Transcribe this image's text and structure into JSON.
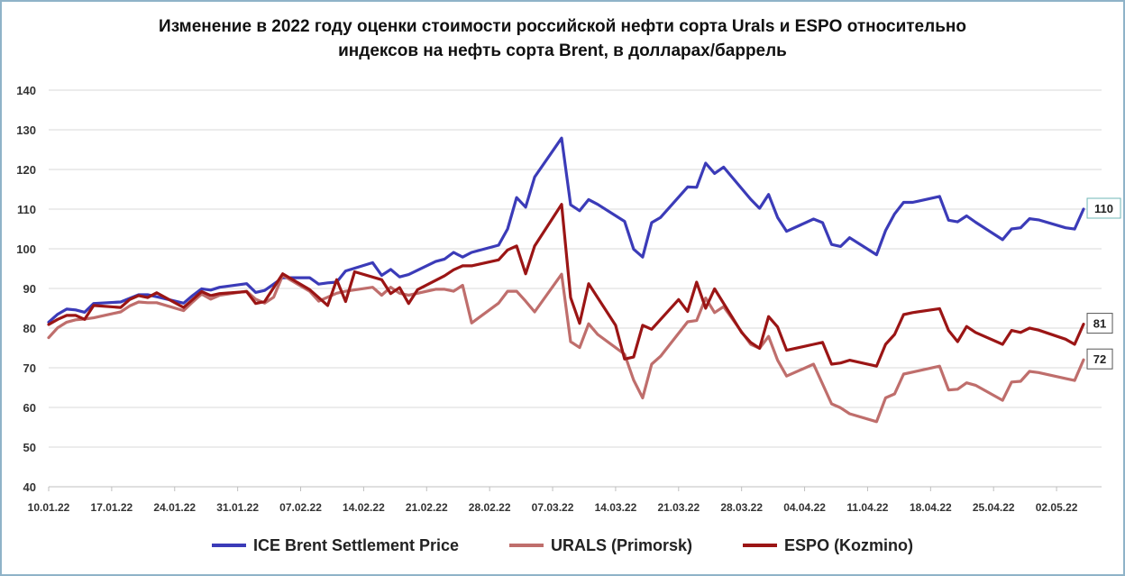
{
  "chart_data": {
    "type": "line",
    "title_line1": "Изменение в 2022 году оценки стоимости российской нефти сорта Urals и ESPO  относительно",
    "title_line2": "индексов на нефть сорта Brent, в долларах/баррель",
    "xlabel": "",
    "ylabel": "",
    "ylim": [
      40,
      140
    ],
    "yticks": [
      "40",
      "50",
      "60",
      "70",
      "80",
      "90",
      "100",
      "110",
      "120",
      "130",
      "140"
    ],
    "xlim_days": [
      10,
      127
    ],
    "xticks": [
      {
        "label": "10.01.22",
        "day": 10
      },
      {
        "label": "17.01.22",
        "day": 17
      },
      {
        "label": "24.01.22",
        "day": 24
      },
      {
        "label": "31.01.22",
        "day": 31
      },
      {
        "label": "07.02.22",
        "day": 38
      },
      {
        "label": "14.02.22",
        "day": 45
      },
      {
        "label": "21.02.22",
        "day": 52
      },
      {
        "label": "28.02.22",
        "day": 59
      },
      {
        "label": "07.03.22",
        "day": 66
      },
      {
        "label": "14.03.22",
        "day": 73
      },
      {
        "label": "21.03.22",
        "day": 80
      },
      {
        "label": "28.03.22",
        "day": 87
      },
      {
        "label": "04.04.22",
        "day": 94
      },
      {
        "label": "11.04.22",
        "day": 101
      },
      {
        "label": "18.04.22",
        "day": 108
      },
      {
        "label": "25.04.22",
        "day": 115
      },
      {
        "label": "02.05.22",
        "day": 122
      }
    ],
    "grid": true,
    "legend_position": "bottom",
    "series": [
      {
        "name": "ICE Brent Settlement Price",
        "color": "#3b3bb8",
        "end_label": "110",
        "points": [
          [
            10,
            81.5
          ],
          [
            11,
            83.5
          ],
          [
            12,
            84.8
          ],
          [
            13,
            84.6
          ],
          [
            14,
            84.0
          ],
          [
            15,
            86.2
          ],
          [
            18,
            86.6
          ],
          [
            19,
            87.5
          ],
          [
            20,
            88.4
          ],
          [
            21,
            88.4
          ],
          [
            22,
            87.9
          ],
          [
            25,
            86.3
          ],
          [
            26,
            88.2
          ],
          [
            27,
            89.9
          ],
          [
            28,
            89.6
          ],
          [
            29,
            90.3
          ],
          [
            32,
            91.2
          ],
          [
            33,
            89.0
          ],
          [
            34,
            89.5
          ],
          [
            35,
            91.1
          ],
          [
            36,
            92.7
          ],
          [
            39,
            92.7
          ],
          [
            40,
            91.1
          ],
          [
            41,
            91.4
          ],
          [
            42,
            91.6
          ],
          [
            43,
            94.4
          ],
          [
            46,
            96.5
          ],
          [
            47,
            93.3
          ],
          [
            48,
            94.8
          ],
          [
            49,
            92.9
          ],
          [
            50,
            93.5
          ],
          [
            53,
            96.8
          ],
          [
            54,
            97.4
          ],
          [
            55,
            99.1
          ],
          [
            56,
            97.9
          ],
          [
            57,
            99.1
          ],
          [
            60,
            100.9
          ],
          [
            61,
            105.0
          ],
          [
            62,
            112.9
          ],
          [
            63,
            110.5
          ],
          [
            64,
            118.1
          ],
          [
            67,
            127.9
          ],
          [
            68,
            111.1
          ],
          [
            69,
            109.6
          ],
          [
            70,
            112.4
          ],
          [
            71,
            111.2
          ],
          [
            74,
            106.9
          ],
          [
            75,
            99.9
          ],
          [
            76,
            97.9
          ],
          [
            77,
            106.6
          ],
          [
            78,
            107.9
          ],
          [
            81,
            115.6
          ],
          [
            82,
            115.5
          ],
          [
            83,
            121.6
          ],
          [
            84,
            119.0
          ],
          [
            85,
            120.6
          ],
          [
            88,
            112.5
          ],
          [
            89,
            110.2
          ],
          [
            90,
            113.7
          ],
          [
            91,
            107.9
          ],
          [
            92,
            104.4
          ],
          [
            95,
            107.5
          ],
          [
            96,
            106.6
          ],
          [
            97,
            101.1
          ],
          [
            98,
            100.6
          ],
          [
            99,
            102.8
          ],
          [
            102,
            98.5
          ],
          [
            103,
            104.6
          ],
          [
            104,
            108.8
          ],
          [
            105,
            111.7
          ],
          [
            106,
            111.7
          ],
          [
            109,
            113.2
          ],
          [
            110,
            107.2
          ],
          [
            111,
            106.8
          ],
          [
            112,
            108.3
          ],
          [
            113,
            106.7
          ],
          [
            116,
            102.3
          ],
          [
            117,
            104.99
          ],
          [
            118,
            105.3
          ],
          [
            119,
            107.6
          ],
          [
            120,
            107.3
          ],
          [
            123,
            105.3
          ],
          [
            124,
            104.97
          ],
          [
            125,
            110.0
          ]
        ]
      },
      {
        "name": "URALS (Primorsk)",
        "color": "#bf6e6c",
        "end_label": "72",
        "points": [
          [
            10,
            77.6
          ],
          [
            11,
            80.1
          ],
          [
            12,
            81.5
          ],
          [
            13,
            82.1
          ],
          [
            14,
            82.3
          ],
          [
            15,
            82.6
          ],
          [
            18,
            84.1
          ],
          [
            19,
            85.6
          ],
          [
            20,
            86.6
          ],
          [
            21,
            86.4
          ],
          [
            22,
            86.4
          ],
          [
            25,
            84.4
          ],
          [
            26,
            86.6
          ],
          [
            27,
            88.6
          ],
          [
            28,
            87.3
          ],
          [
            29,
            88.3
          ],
          [
            32,
            89.3
          ],
          [
            33,
            87.3
          ],
          [
            34,
            86.3
          ],
          [
            35,
            87.8
          ],
          [
            36,
            93.3
          ],
          [
            39,
            89.3
          ],
          [
            40,
            86.8
          ],
          [
            41,
            87.8
          ],
          [
            42,
            88.8
          ],
          [
            43,
            89.3
          ],
          [
            46,
            90.3
          ],
          [
            47,
            88.3
          ],
          [
            48,
            90.3
          ],
          [
            49,
            88.8
          ],
          [
            50,
            88.3
          ],
          [
            53,
            89.8
          ],
          [
            54,
            89.8
          ],
          [
            55,
            89.3
          ],
          [
            56,
            90.8
          ],
          [
            57,
            81.3
          ],
          [
            60,
            86.3
          ],
          [
            61,
            89.3
          ],
          [
            62,
            89.3
          ],
          [
            63,
            86.8
          ],
          [
            64,
            84.1
          ],
          [
            67,
            93.6
          ],
          [
            68,
            76.6
          ],
          [
            69,
            75.1
          ],
          [
            70,
            81.1
          ],
          [
            71,
            78.4
          ],
          [
            74,
            73.4
          ],
          [
            75,
            66.9
          ],
          [
            76,
            62.4
          ],
          [
            77,
            70.9
          ],
          [
            78,
            72.9
          ],
          [
            81,
            81.6
          ],
          [
            82,
            81.9
          ],
          [
            83,
            87.6
          ],
          [
            84,
            83.9
          ],
          [
            85,
            85.4
          ],
          [
            88,
            75.9
          ],
          [
            89,
            74.9
          ],
          [
            90,
            77.9
          ],
          [
            91,
            71.9
          ],
          [
            92,
            67.9
          ],
          [
            95,
            70.9
          ],
          [
            96,
            65.9
          ],
          [
            97,
            60.9
          ],
          [
            98,
            59.9
          ],
          [
            99,
            58.4
          ],
          [
            102,
            56.4
          ],
          [
            103,
            62.4
          ],
          [
            104,
            63.4
          ],
          [
            105,
            68.4
          ],
          [
            106,
            68.9
          ],
          [
            109,
            70.4
          ],
          [
            110,
            64.4
          ],
          [
            111,
            64.6
          ],
          [
            112,
            66.2
          ],
          [
            113,
            65.6
          ],
          [
            116,
            61.8
          ],
          [
            117,
            66.4
          ],
          [
            118,
            66.6
          ],
          [
            119,
            69.1
          ],
          [
            120,
            68.8
          ],
          [
            123,
            67.3
          ],
          [
            124,
            66.8
          ],
          [
            125,
            72.0
          ]
        ]
      },
      {
        "name": "ESPO (Kozmino)",
        "color": "#9b1515",
        "end_label": "81",
        "points": [
          [
            10,
            80.9
          ],
          [
            11,
            82.2
          ],
          [
            12,
            83.2
          ],
          [
            13,
            83.2
          ],
          [
            14,
            82.2
          ],
          [
            15,
            85.7
          ],
          [
            18,
            85.2
          ],
          [
            19,
            87.2
          ],
          [
            20,
            88.2
          ],
          [
            21,
            87.7
          ],
          [
            22,
            88.9
          ],
          [
            25,
            85.2
          ],
          [
            26,
            87.2
          ],
          [
            27,
            89.2
          ],
          [
            28,
            88.2
          ],
          [
            29,
            88.7
          ],
          [
            32,
            89.2
          ],
          [
            33,
            86.2
          ],
          [
            34,
            86.7
          ],
          [
            35,
            90.2
          ],
          [
            36,
            93.7
          ],
          [
            39,
            89.7
          ],
          [
            40,
            87.7
          ],
          [
            41,
            85.7
          ],
          [
            42,
            92.2
          ],
          [
            43,
            86.7
          ],
          [
            44,
            94.2
          ],
          [
            47,
            92.2
          ],
          [
            48,
            88.7
          ],
          [
            49,
            90.2
          ],
          [
            50,
            86.2
          ],
          [
            51,
            89.7
          ],
          [
            54,
            93.2
          ],
          [
            55,
            94.7
          ],
          [
            56,
            95.7
          ],
          [
            57,
            95.7
          ],
          [
            60,
            97.2
          ],
          [
            61,
            99.7
          ],
          [
            62,
            100.7
          ],
          [
            63,
            93.7
          ],
          [
            64,
            100.7
          ],
          [
            67,
            111.2
          ],
          [
            68,
            87.7
          ],
          [
            69,
            81.2
          ],
          [
            70,
            91.2
          ],
          [
            73,
            80.7
          ],
          [
            74,
            72.2
          ],
          [
            75,
            72.7
          ],
          [
            76,
            80.7
          ],
          [
            77,
            79.7
          ],
          [
            80,
            87.2
          ],
          [
            81,
            84.2
          ],
          [
            82,
            91.6
          ],
          [
            83,
            85.0
          ],
          [
            84,
            89.9
          ],
          [
            87,
            78.9
          ],
          [
            88,
            76.4
          ],
          [
            89,
            74.9
          ],
          [
            90,
            82.9
          ],
          [
            91,
            80.3
          ],
          [
            92,
            74.4
          ],
          [
            95,
            75.9
          ],
          [
            96,
            76.4
          ],
          [
            97,
            70.9
          ],
          [
            98,
            71.2
          ],
          [
            99,
            71.9
          ],
          [
            102,
            70.4
          ],
          [
            103,
            75.9
          ],
          [
            104,
            78.4
          ],
          [
            105,
            83.4
          ],
          [
            106,
            83.9
          ],
          [
            109,
            84.9
          ],
          [
            110,
            79.4
          ],
          [
            111,
            76.6
          ],
          [
            112,
            80.4
          ],
          [
            113,
            78.9
          ],
          [
            116,
            75.9
          ],
          [
            117,
            79.4
          ],
          [
            118,
            78.9
          ],
          [
            119,
            80.0
          ],
          [
            120,
            79.5
          ],
          [
            123,
            77.2
          ],
          [
            124,
            75.9
          ],
          [
            125,
            81.0
          ]
        ]
      }
    ]
  }
}
